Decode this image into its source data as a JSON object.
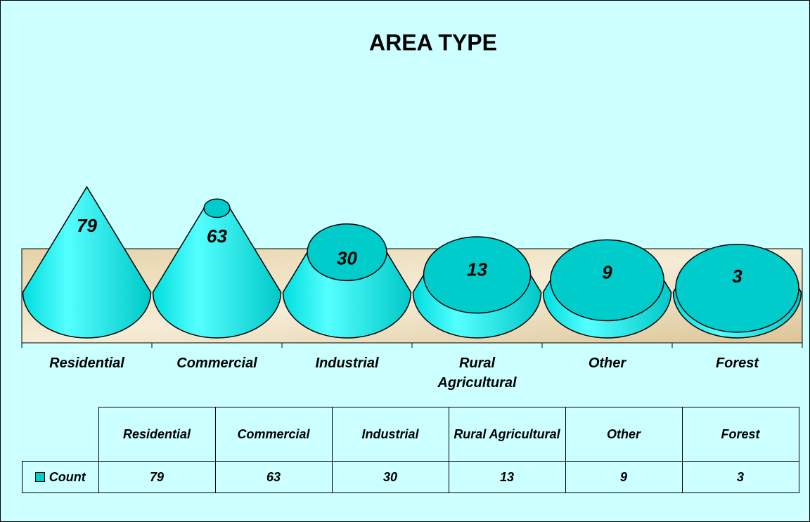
{
  "chart_data": {
    "type": "cone",
    "title": "AREA TYPE",
    "categories": [
      "Residential",
      "Commercial",
      "Industrial",
      "Rural Agricultural",
      "Other",
      "Forest"
    ],
    "series": [
      {
        "name": "Count",
        "color": "#00cccc",
        "values": [
          79,
          63,
          30,
          13,
          9,
          3
        ]
      }
    ]
  }
}
